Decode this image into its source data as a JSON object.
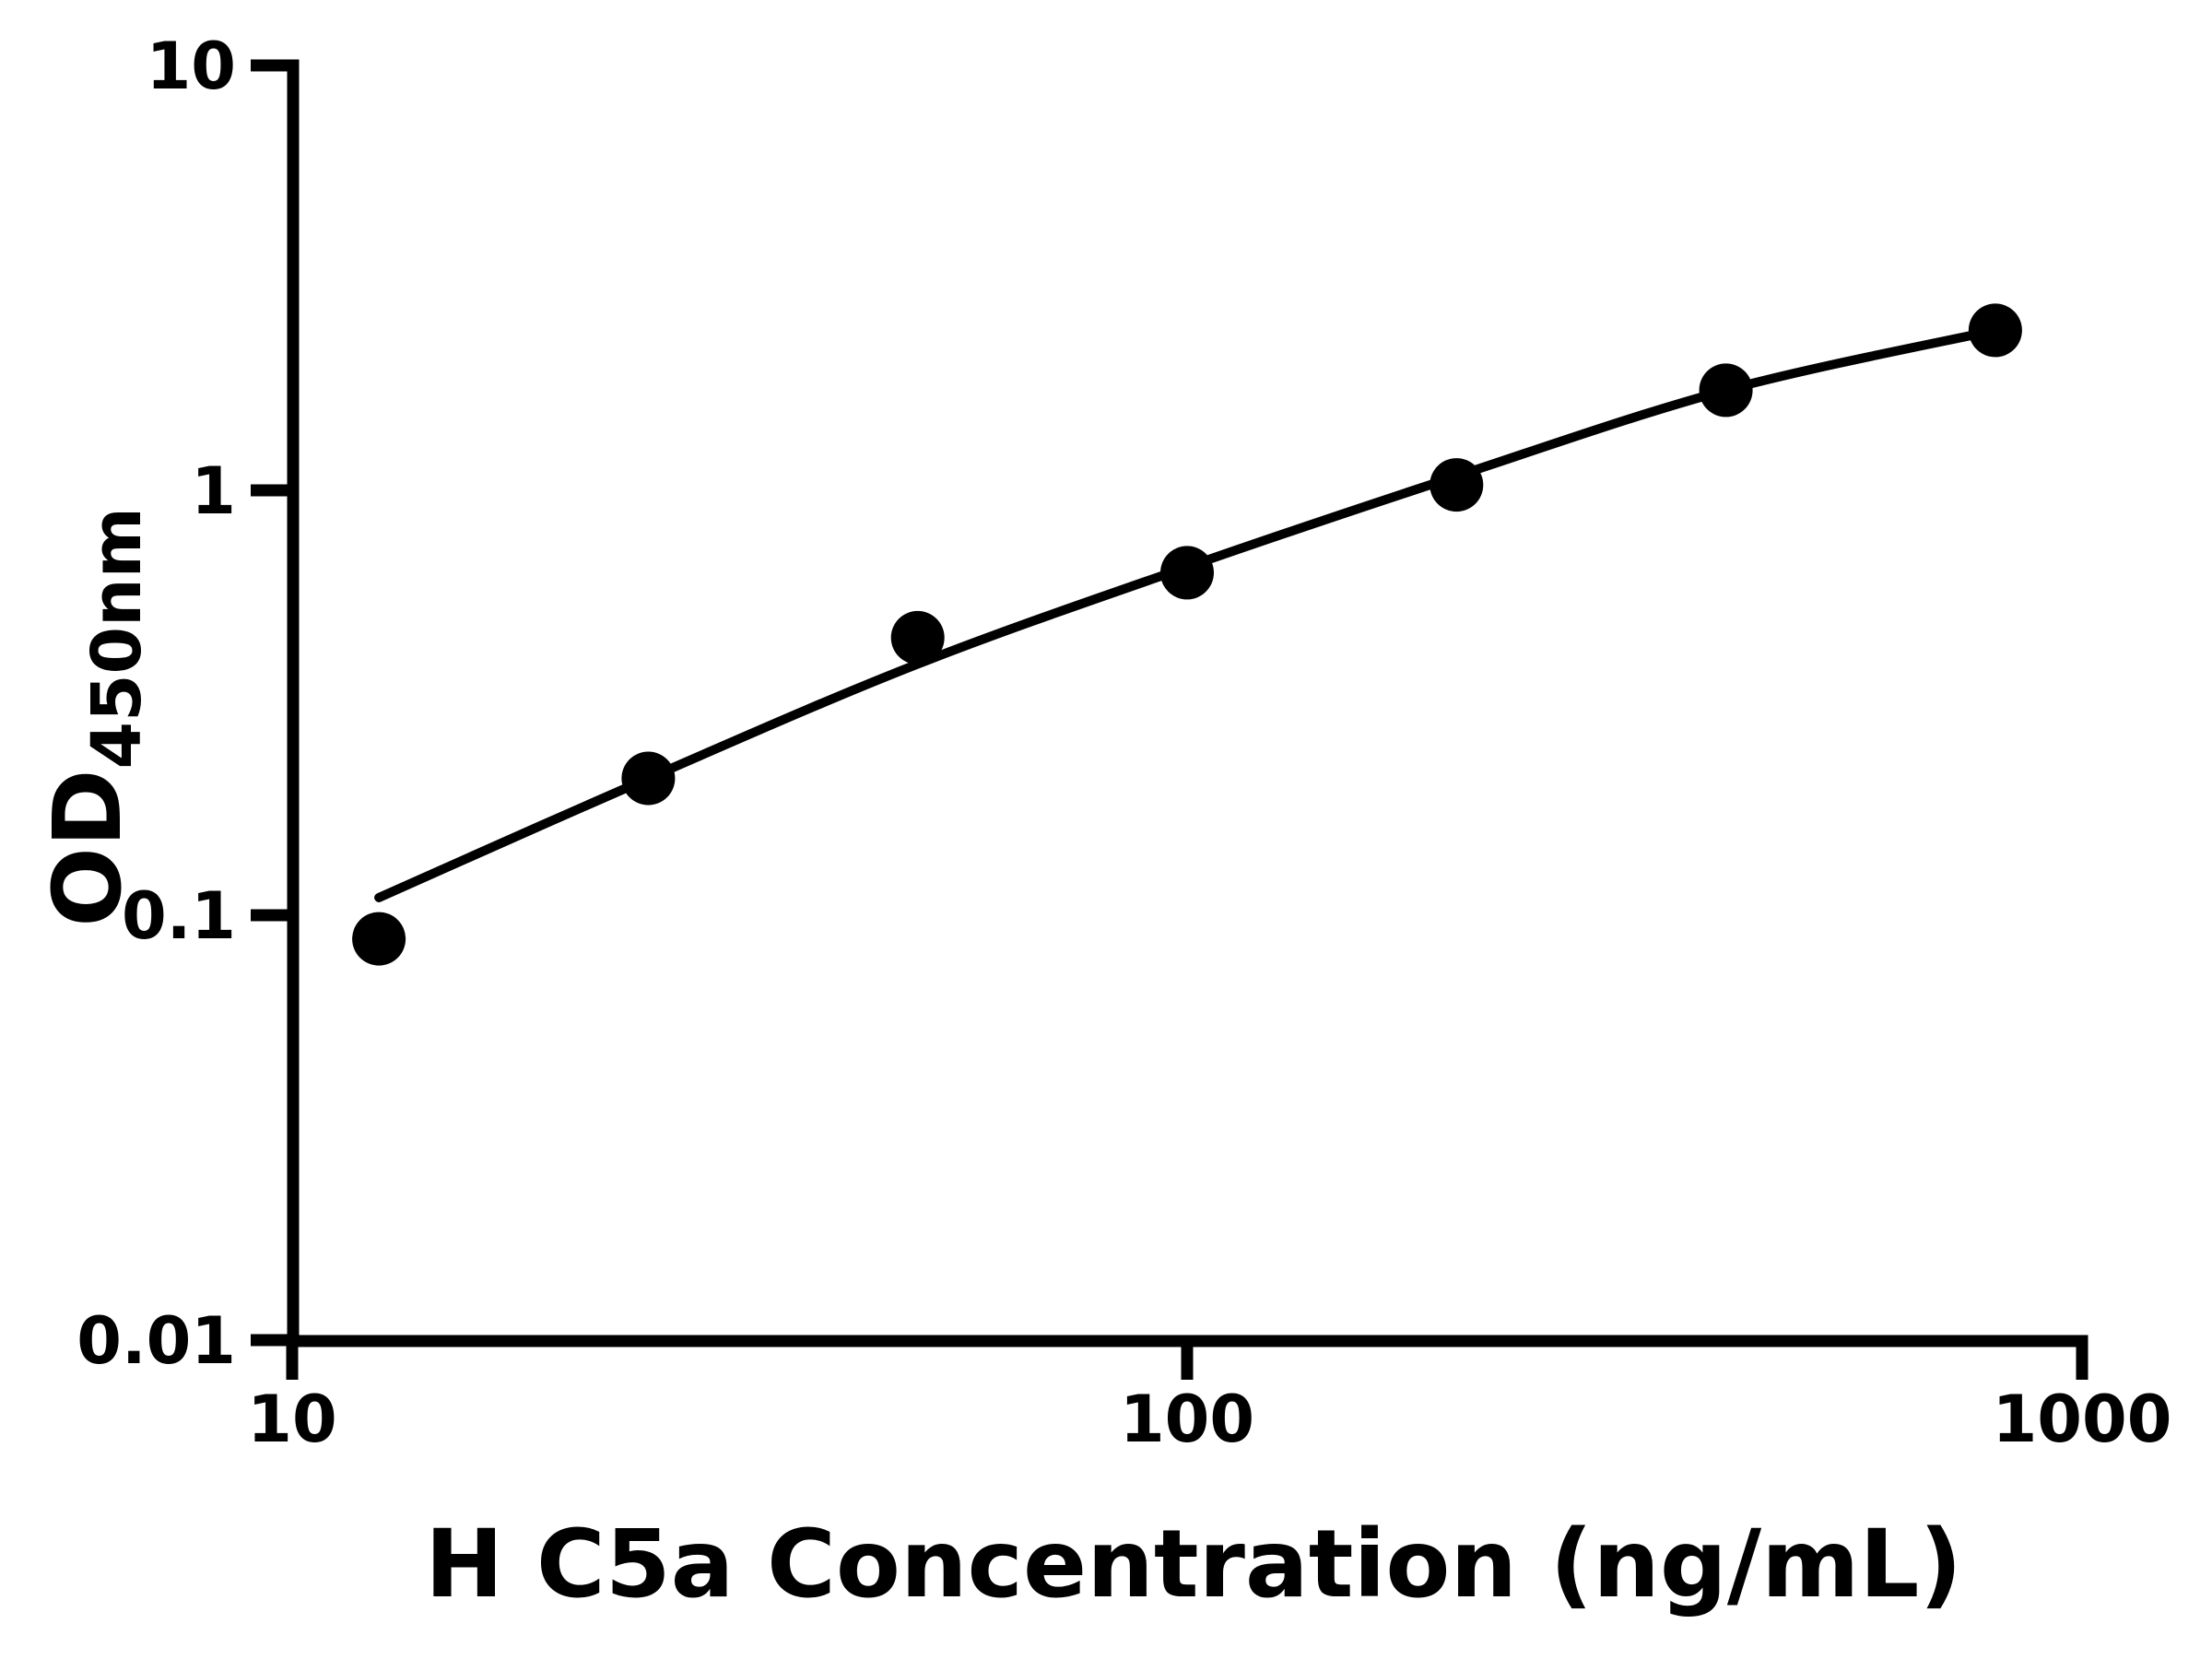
{
  "chart_data": {
    "type": "scatter",
    "title": "",
    "xlabel": "H C5a Concentration (ng/mL)",
    "ylabel_main": "OD",
    "ylabel_sub": "450nm",
    "x_scale": "log",
    "y_scale": "log",
    "xlim": [
      10,
      1000
    ],
    "ylim": [
      0.01,
      10
    ],
    "grid": false,
    "legend": null,
    "x_ticks": [
      {
        "value": 10,
        "label": "10"
      },
      {
        "value": 100,
        "label": "100"
      },
      {
        "value": 1000,
        "label": "1000"
      }
    ],
    "y_ticks": [
      {
        "value": 10,
        "label": "10"
      },
      {
        "value": 1,
        "label": "1"
      },
      {
        "value": 0.1,
        "label": "0.1"
      },
      {
        "value": 0.01,
        "label": "0.01"
      }
    ],
    "points": {
      "x": [
        12.5,
        25,
        50,
        100,
        200,
        400,
        800
      ],
      "y": [
        0.088,
        0.21,
        0.45,
        0.64,
        1.03,
        1.72,
        2.38
      ]
    },
    "fit_curve": {
      "x": [
        12.5,
        25,
        50,
        100,
        200,
        400,
        800
      ],
      "y": [
        0.11,
        0.21,
        0.39,
        0.66,
        1.08,
        1.72,
        2.38
      ]
    },
    "colors": {
      "points": "#000000",
      "curve": "#000000",
      "axis": "#000000",
      "text": "#000000",
      "background": "#ffffff"
    }
  }
}
